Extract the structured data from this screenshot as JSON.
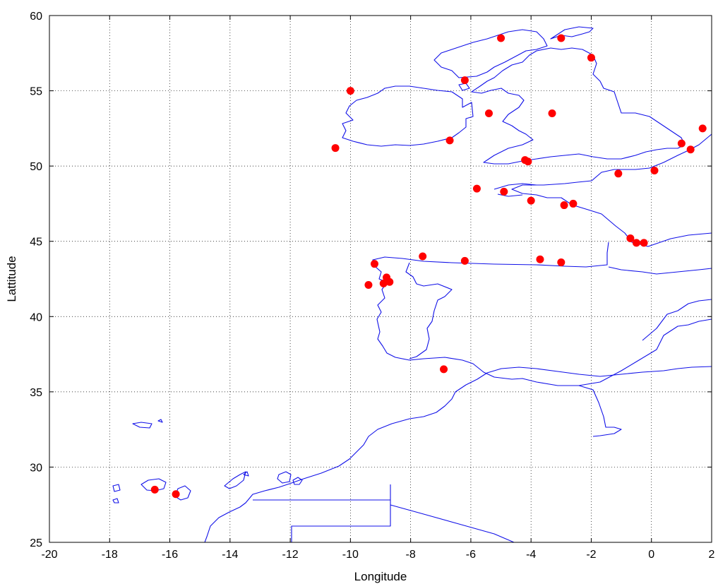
{
  "chart_data": {
    "type": "scatter",
    "title": "",
    "xlabel": "Longitude",
    "ylabel": "Lattitude",
    "xlim": [
      -20,
      2
    ],
    "ylim": [
      25,
      60
    ],
    "xticks": [
      -20,
      -18,
      -16,
      -14,
      -12,
      -10,
      -8,
      -6,
      -4,
      -2,
      0,
      2
    ],
    "yticks": [
      25,
      30,
      35,
      40,
      45,
      50,
      55,
      60
    ],
    "grid": true,
    "colors": {
      "points": "#ff0000",
      "coastline": "#1010e8"
    },
    "points": [
      {
        "x": -5.0,
        "y": 58.5
      },
      {
        "x": -3.0,
        "y": 58.5
      },
      {
        "x": -2.0,
        "y": 57.2
      },
      {
        "x": -6.2,
        "y": 55.7
      },
      {
        "x": -10.0,
        "y": 55.0
      },
      {
        "x": -5.4,
        "y": 53.5
      },
      {
        "x": -3.3,
        "y": 53.5
      },
      {
        "x": 1.7,
        "y": 52.5
      },
      {
        "x": -10.5,
        "y": 51.2
      },
      {
        "x": -6.7,
        "y": 51.7
      },
      {
        "x": 1.0,
        "y": 51.5
      },
      {
        "x": 1.3,
        "y": 51.1
      },
      {
        "x": -4.2,
        "y": 50.4
      },
      {
        "x": -4.1,
        "y": 50.3
      },
      {
        "x": -1.1,
        "y": 49.5
      },
      {
        "x": 0.1,
        "y": 49.7
      },
      {
        "x": -5.8,
        "y": 48.5
      },
      {
        "x": -4.9,
        "y": 48.3
      },
      {
        "x": -4.0,
        "y": 47.7
      },
      {
        "x": -2.9,
        "y": 47.4
      },
      {
        "x": -2.6,
        "y": 47.5
      },
      {
        "x": -0.7,
        "y": 45.2
      },
      {
        "x": -0.5,
        "y": 44.9
      },
      {
        "x": -0.25,
        "y": 44.9
      },
      {
        "x": -7.6,
        "y": 44.0
      },
      {
        "x": -6.2,
        "y": 43.7
      },
      {
        "x": -3.7,
        "y": 43.8
      },
      {
        "x": -3.0,
        "y": 43.6
      },
      {
        "x": -9.2,
        "y": 43.5
      },
      {
        "x": -8.8,
        "y": 42.6
      },
      {
        "x": -8.7,
        "y": 42.3
      },
      {
        "x": -8.9,
        "y": 42.2
      },
      {
        "x": -9.4,
        "y": 42.1
      },
      {
        "x": -6.9,
        "y": 36.5
      },
      {
        "x": -16.5,
        "y": 28.5
      },
      {
        "x": -15.8,
        "y": 28.2
      }
    ]
  }
}
